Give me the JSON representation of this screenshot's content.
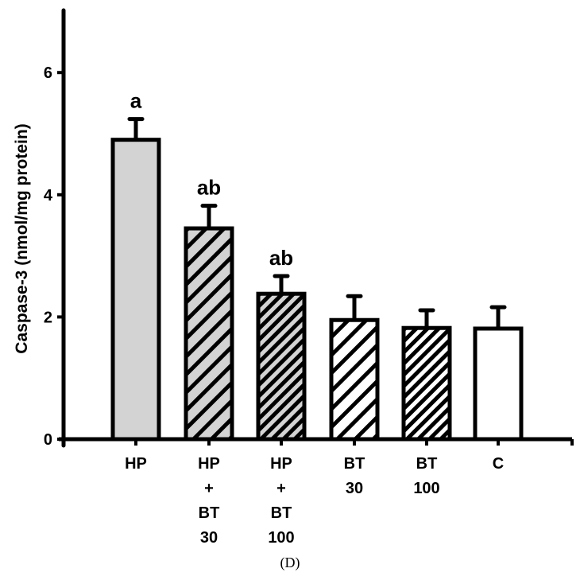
{
  "chart_data": {
    "type": "bar",
    "title": "",
    "panel_label": "(D)",
    "xlabel": "",
    "ylabel": "Caspase-3 (nmol/mg protein)",
    "ylim": [
      0,
      7
    ],
    "yticks": [
      0,
      2,
      4,
      6
    ],
    "grid": false,
    "legend": null,
    "categories": [
      "HP",
      "HP + BT 30",
      "HP + BT 100",
      "BT 30",
      "BT 100",
      "C"
    ],
    "category_label_lines": [
      [
        "HP"
      ],
      [
        "HP",
        "+",
        "BT",
        "30"
      ],
      [
        "HP",
        "+",
        "BT",
        "100"
      ],
      [
        "BT",
        "30"
      ],
      [
        "BT",
        "100"
      ],
      [
        "C"
      ]
    ],
    "values": [
      4.9,
      3.45,
      2.38,
      1.95,
      1.82,
      1.81
    ],
    "error_upper": [
      0.34,
      0.37,
      0.29,
      0.39,
      0.29,
      0.35
    ],
    "annotations": [
      "a",
      "ab",
      "ab",
      "",
      "",
      ""
    ],
    "fills": [
      {
        "pattern": "solid",
        "bg": "#d3d3d3",
        "stripe": null
      },
      {
        "pattern": "hatch-wide",
        "bg": "#d3d3d3",
        "stripe": "#000000"
      },
      {
        "pattern": "hatch-dense",
        "bg": "#d3d3d3",
        "stripe": "#000000"
      },
      {
        "pattern": "hatch-wide",
        "bg": "#ffffff",
        "stripe": "#000000"
      },
      {
        "pattern": "hatch-dense",
        "bg": "#ffffff",
        "stripe": "#000000"
      },
      {
        "pattern": "solid",
        "bg": "#ffffff",
        "stripe": null
      }
    ]
  }
}
